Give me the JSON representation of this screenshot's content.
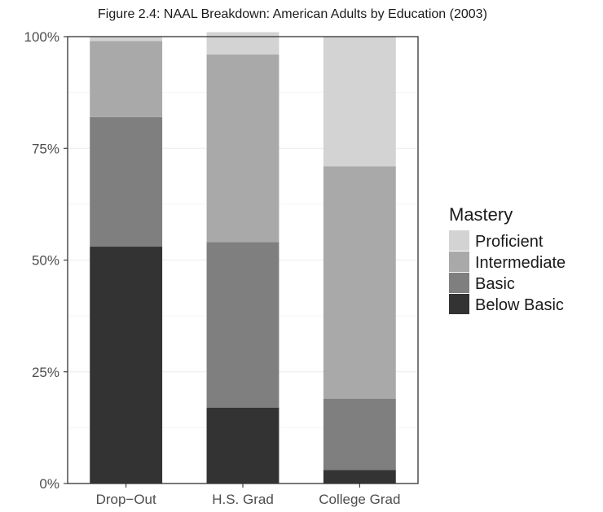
{
  "chart_data": {
    "type": "bar",
    "stacked": true,
    "title": "Figure 2.4: NAAL Breakdown: American Adults by Education (2003)",
    "xlabel": "",
    "ylabel": "",
    "categories": [
      "Drop−Out",
      "H.S. Grad",
      "College Grad"
    ],
    "ylim": [
      0,
      100
    ],
    "y_ticks": [
      0,
      25,
      50,
      75,
      100
    ],
    "y_tick_labels": [
      "0%",
      "25%",
      "50%",
      "75%",
      "100%"
    ],
    "grid": true,
    "legend": {
      "title": "Mastery",
      "placement": "right"
    },
    "series": [
      {
        "name": "Below Basic",
        "color": "#333333",
        "values": [
          53,
          17,
          3
        ]
      },
      {
        "name": "Basic",
        "color": "#7f7f7f",
        "values": [
          29,
          37,
          16
        ]
      },
      {
        "name": "Intermediate",
        "color": "#a9a9a9",
        "values": [
          17,
          42,
          52
        ]
      },
      {
        "name": "Proficient",
        "color": "#d3d3d3",
        "values": [
          1,
          5,
          29
        ]
      }
    ],
    "legend_order": [
      "Proficient",
      "Intermediate",
      "Basic",
      "Below Basic"
    ]
  }
}
